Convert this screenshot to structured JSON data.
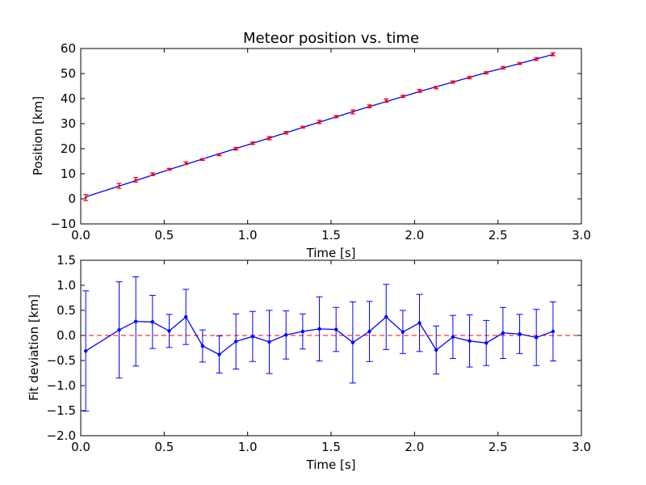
{
  "chart_data": [
    {
      "type": "line",
      "title": "Meteor position vs. time",
      "xlabel": "Time [s]",
      "ylabel": "Position [km]",
      "xlim": [
        0.0,
        3.0
      ],
      "ylim": [
        -10,
        60
      ],
      "xticks": [
        "0.0",
        "0.5",
        "1.0",
        "1.5",
        "2.0",
        "2.5",
        "3.0"
      ],
      "yticks": [
        "−10",
        "0",
        "10",
        "20",
        "30",
        "40",
        "50",
        "60"
      ],
      "grid": false,
      "series": [
        {
          "kind": "fit_line",
          "color": "#0000ff",
          "x": [
            0.03,
            0.23,
            0.33,
            0.43,
            0.53,
            0.63,
            0.73,
            0.83,
            0.93,
            1.03,
            1.13,
            1.23,
            1.33,
            1.43,
            1.53,
            1.63,
            1.73,
            1.83,
            1.93,
            2.03,
            2.13,
            2.23,
            2.33,
            2.43,
            2.53,
            2.63,
            2.73,
            2.83
          ],
          "y": [
            0.8,
            5.1,
            7.3,
            9.5,
            11.7,
            13.8,
            15.9,
            18.0,
            20.1,
            22.2,
            24.3,
            26.4,
            28.5,
            30.6,
            32.7,
            34.8,
            36.8,
            38.8,
            40.8,
            42.8,
            44.7,
            46.6,
            48.5,
            50.4,
            52.2,
            54.0,
            55.8,
            57.6
          ]
        },
        {
          "kind": "measurements",
          "color": "#ff0000",
          "x": [
            0.03,
            0.23,
            0.33,
            0.43,
            0.53,
            0.63,
            0.73,
            0.83,
            0.93,
            1.03,
            1.13,
            1.23,
            1.33,
            1.43,
            1.53,
            1.63,
            1.73,
            1.83,
            1.93,
            2.03,
            2.13,
            2.23,
            2.33,
            2.43,
            2.53,
            2.63,
            2.73,
            2.83
          ],
          "y": [
            0.5,
            5.2,
            7.6,
            9.8,
            11.8,
            14.2,
            15.7,
            17.6,
            20.0,
            22.2,
            24.2,
            26.4,
            28.6,
            30.7,
            32.8,
            34.7,
            36.9,
            39.2,
            40.9,
            43.1,
            44.4,
            46.6,
            48.4,
            50.3,
            52.3,
            54.0,
            55.8,
            57.7
          ],
          "yerr": [
            1.2,
            1.0,
            0.9,
            0.55,
            0.35,
            0.55,
            0.35,
            0.4,
            0.55,
            0.5,
            0.65,
            0.5,
            0.35,
            0.65,
            0.45,
            0.8,
            0.6,
            0.65,
            0.45,
            0.6,
            0.5,
            0.45,
            0.5,
            0.45,
            0.5,
            0.4,
            0.55,
            0.6
          ]
        }
      ]
    },
    {
      "type": "line",
      "title": "",
      "xlabel": "Time [s]",
      "ylabel": "Fit deviation [km]",
      "xlim": [
        0.0,
        3.0
      ],
      "ylim": [
        -2.0,
        1.5
      ],
      "xticks": [
        "0.0",
        "0.5",
        "1.0",
        "1.5",
        "2.0",
        "2.5",
        "3.0"
      ],
      "yticks": [
        "−2.0",
        "−1.5",
        "−1.0",
        "−0.5",
        "0.0",
        "0.5",
        "1.0",
        "1.5"
      ],
      "grid": false,
      "reference_line": {
        "y": 0.0,
        "color": "#ff0000",
        "style": "dashed"
      },
      "series": [
        {
          "kind": "residuals",
          "color": "#0000ff",
          "x": [
            0.03,
            0.23,
            0.33,
            0.43,
            0.53,
            0.63,
            0.73,
            0.83,
            0.93,
            1.03,
            1.13,
            1.23,
            1.33,
            1.43,
            1.53,
            1.63,
            1.73,
            1.83,
            1.93,
            2.03,
            2.13,
            2.23,
            2.33,
            2.43,
            2.53,
            2.63,
            2.73,
            2.83
          ],
          "y": [
            -0.31,
            0.11,
            0.28,
            0.27,
            0.09,
            0.37,
            -0.21,
            -0.38,
            -0.12,
            -0.02,
            -0.13,
            0.01,
            0.08,
            0.13,
            0.12,
            -0.14,
            0.08,
            0.37,
            0.07,
            0.25,
            -0.29,
            -0.03,
            -0.11,
            -0.15,
            0.05,
            0.03,
            -0.04,
            0.08
          ],
          "yerr": [
            1.2,
            0.96,
            0.89,
            0.53,
            0.33,
            0.55,
            0.32,
            0.37,
            0.55,
            0.5,
            0.63,
            0.48,
            0.35,
            0.64,
            0.44,
            0.81,
            0.6,
            0.65,
            0.43,
            0.57,
            0.48,
            0.43,
            0.52,
            0.45,
            0.51,
            0.39,
            0.56,
            0.59
          ]
        }
      ]
    }
  ]
}
